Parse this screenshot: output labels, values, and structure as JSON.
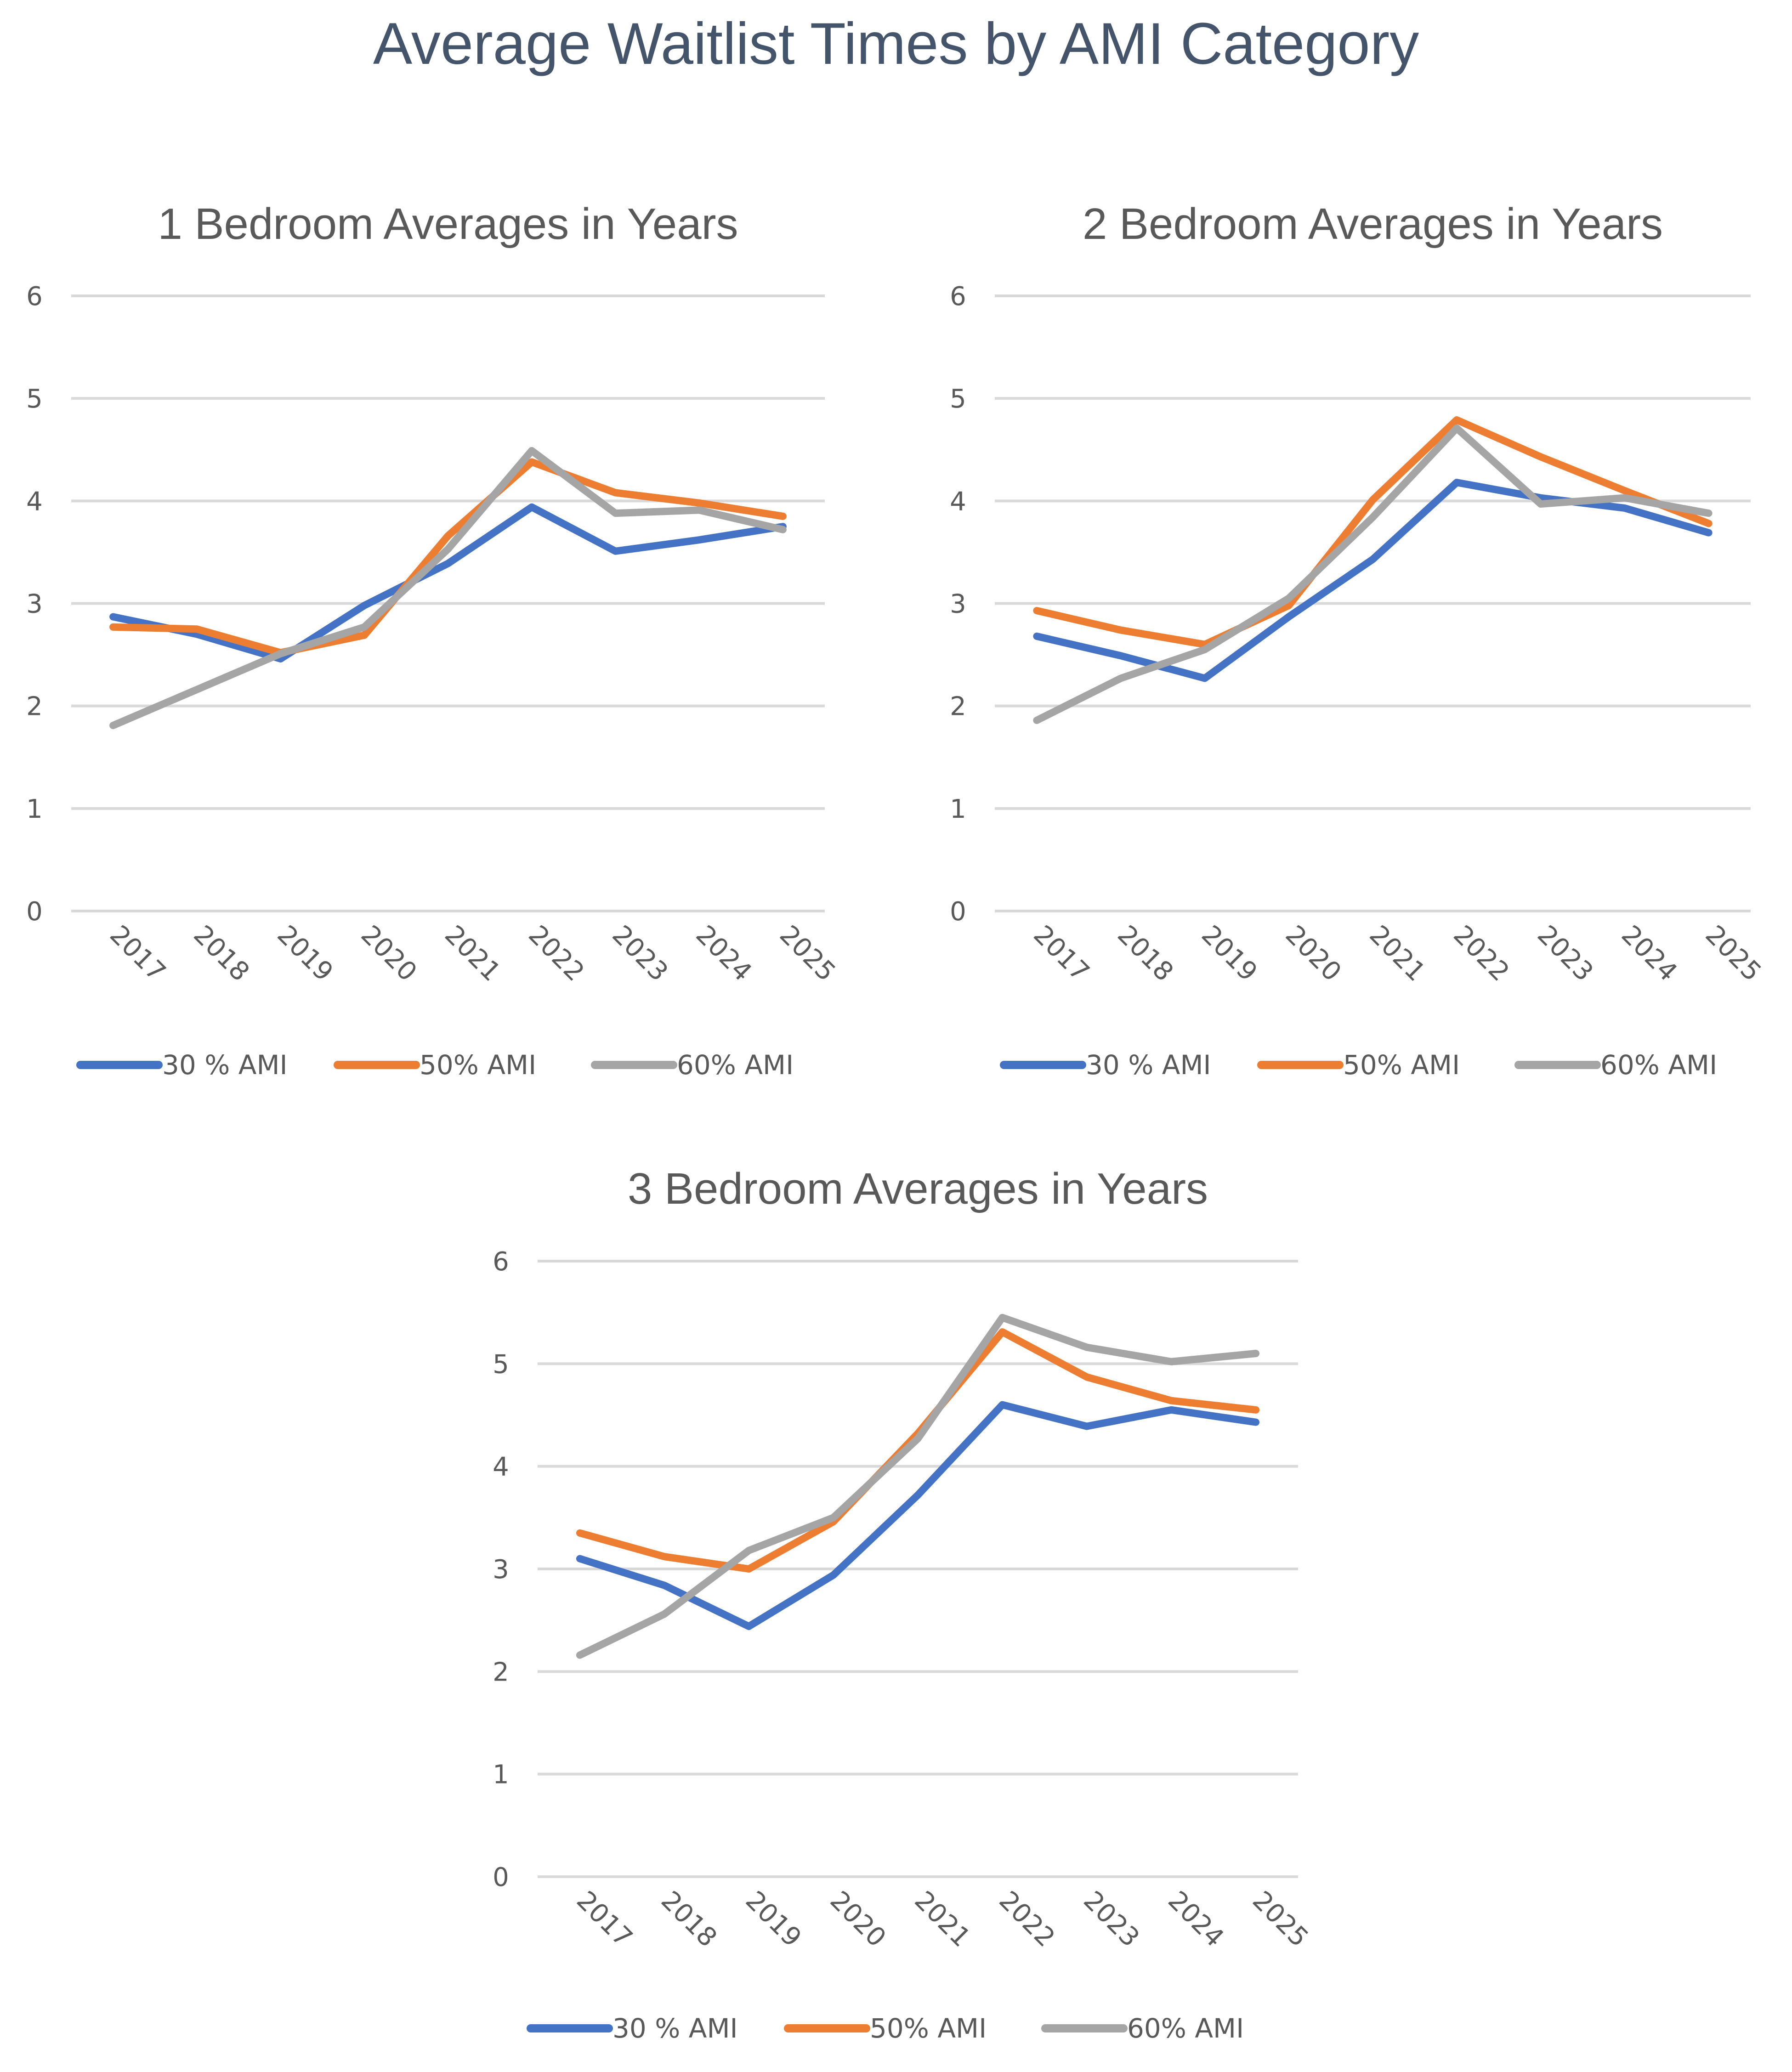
{
  "title": "Average Waitlist Times by AMI Category",
  "colors": {
    "30 % AMI": "#4472c4",
    "50% AMI": "#ed7d31",
    "60% AMI": "#a5a5a5"
  },
  "chart_data": [
    {
      "type": "line",
      "title": "1 Bedroom Averages in Years",
      "xlabel": "",
      "ylabel": "",
      "categories": [
        "2017",
        "2018",
        "2019",
        "2020",
        "2021",
        "2022",
        "2023",
        "2024",
        "2025"
      ],
      "ylim": [
        0,
        6
      ],
      "yticks": [
        0,
        1,
        2,
        3,
        4,
        5,
        6
      ],
      "grid": true,
      "legend": "bottom",
      "series": [
        {
          "name": "30 % AMI",
          "values": [
            2.87,
            2.7,
            2.46,
            2.98,
            3.39,
            3.94,
            3.51,
            3.62,
            3.75
          ]
        },
        {
          "name": "50% AMI",
          "values": [
            2.77,
            2.75,
            2.52,
            2.69,
            3.66,
            4.38,
            4.08,
            3.98,
            3.85
          ]
        },
        {
          "name": "60% AMI",
          "values": [
            1.81,
            2.16,
            2.51,
            2.77,
            3.53,
            4.49,
            3.88,
            3.91,
            3.72
          ]
        }
      ]
    },
    {
      "type": "line",
      "title": "2 Bedroom Averages in Years",
      "xlabel": "",
      "ylabel": "",
      "categories": [
        "2017",
        "2018",
        "2019",
        "2020",
        "2021",
        "2022",
        "2023",
        "2024",
        "2025"
      ],
      "ylim": [
        0,
        6
      ],
      "yticks": [
        0,
        1,
        2,
        3,
        4,
        5,
        6
      ],
      "grid": true,
      "legend": "bottom",
      "series": [
        {
          "name": "30 % AMI",
          "values": [
            2.68,
            2.49,
            2.27,
            2.87,
            3.43,
            4.18,
            4.03,
            3.93,
            3.69
          ]
        },
        {
          "name": "50% AMI",
          "values": [
            2.93,
            2.74,
            2.6,
            2.98,
            4.01,
            4.79,
            4.43,
            4.1,
            3.78
          ]
        },
        {
          "name": "60% AMI",
          "values": [
            1.86,
            2.27,
            2.55,
            3.05,
            3.84,
            4.71,
            3.97,
            4.03,
            3.88
          ]
        }
      ]
    },
    {
      "type": "line",
      "title": "3 Bedroom Averages in Years",
      "xlabel": "",
      "ylabel": "",
      "categories": [
        "2017",
        "2018",
        "2019",
        "2020",
        "2021",
        "2022",
        "2023",
        "2024",
        "2025"
      ],
      "ylim": [
        0,
        6
      ],
      "yticks": [
        0,
        1,
        2,
        3,
        4,
        5,
        6
      ],
      "grid": true,
      "legend": "bottom",
      "series": [
        {
          "name": "30 % AMI",
          "values": [
            3.1,
            2.84,
            2.44,
            2.94,
            3.72,
            4.6,
            4.39,
            4.55,
            4.43
          ]
        },
        {
          "name": "50% AMI",
          "values": [
            3.35,
            3.12,
            3.0,
            3.46,
            4.32,
            5.31,
            4.87,
            4.64,
            4.55
          ]
        },
        {
          "name": "60% AMI",
          "values": [
            2.16,
            2.56,
            3.18,
            3.5,
            4.27,
            5.45,
            5.16,
            5.02,
            5.1
          ]
        }
      ]
    }
  ]
}
